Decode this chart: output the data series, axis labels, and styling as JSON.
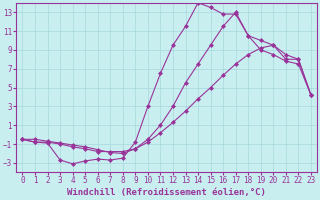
{
  "title": "",
  "xlabel": "Windchill (Refroidissement éolien,°C)",
  "ylabel": "",
  "background_color": "#c8eef0",
  "grid_color": "#a8d8dc",
  "line_color": "#993399",
  "xlim": [
    -0.5,
    23.5
  ],
  "ylim": [
    -4,
    14
  ],
  "xticks": [
    0,
    1,
    2,
    3,
    4,
    5,
    6,
    7,
    8,
    9,
    10,
    11,
    12,
    13,
    14,
    15,
    16,
    17,
    18,
    19,
    20,
    21,
    22,
    23
  ],
  "yticks": [
    -3,
    -1,
    1,
    3,
    5,
    7,
    9,
    11,
    13
  ],
  "line1_x": [
    0,
    1,
    2,
    3,
    4,
    5,
    6,
    7,
    8,
    9,
    10,
    11,
    12,
    13,
    14,
    15,
    16,
    17,
    18,
    19,
    20,
    21,
    22,
    23
  ],
  "line1_y": [
    -0.5,
    -0.8,
    -0.9,
    -2.7,
    -3.1,
    -2.8,
    -2.6,
    -2.7,
    -2.5,
    -0.8,
    3.0,
    6.5,
    9.5,
    11.5,
    14.0,
    13.5,
    12.8,
    12.8,
    10.5,
    9.0,
    8.5,
    7.8,
    7.5,
    4.2
  ],
  "line2_x": [
    0,
    1,
    2,
    3,
    4,
    5,
    6,
    7,
    8,
    9,
    10,
    11,
    12,
    13,
    14,
    15,
    16,
    17,
    18,
    19,
    20,
    21,
    22,
    23
  ],
  "line2_y": [
    -0.5,
    -0.8,
    -0.8,
    -1.0,
    -1.3,
    -1.5,
    -1.8,
    -1.8,
    -1.8,
    -1.5,
    -0.5,
    1.0,
    3.0,
    5.5,
    7.5,
    9.5,
    11.5,
    13.0,
    10.5,
    10.0,
    9.5,
    8.0,
    8.0,
    4.2
  ],
  "line3_x": [
    0,
    1,
    2,
    3,
    4,
    5,
    6,
    7,
    8,
    9,
    10,
    11,
    12,
    13,
    14,
    15,
    16,
    17,
    18,
    19,
    20,
    21,
    22,
    23
  ],
  "line3_y": [
    -0.5,
    -0.5,
    -0.7,
    -0.9,
    -1.1,
    -1.3,
    -1.6,
    -1.9,
    -2.0,
    -1.5,
    -0.8,
    0.2,
    1.3,
    2.5,
    3.8,
    5.0,
    6.3,
    7.5,
    8.5,
    9.2,
    9.5,
    8.5,
    8.0,
    4.2
  ],
  "marker": "D",
  "markersize": 2.0,
  "linewidth": 0.8,
  "xlabel_fontsize": 6.5,
  "tick_fontsize": 5.5
}
